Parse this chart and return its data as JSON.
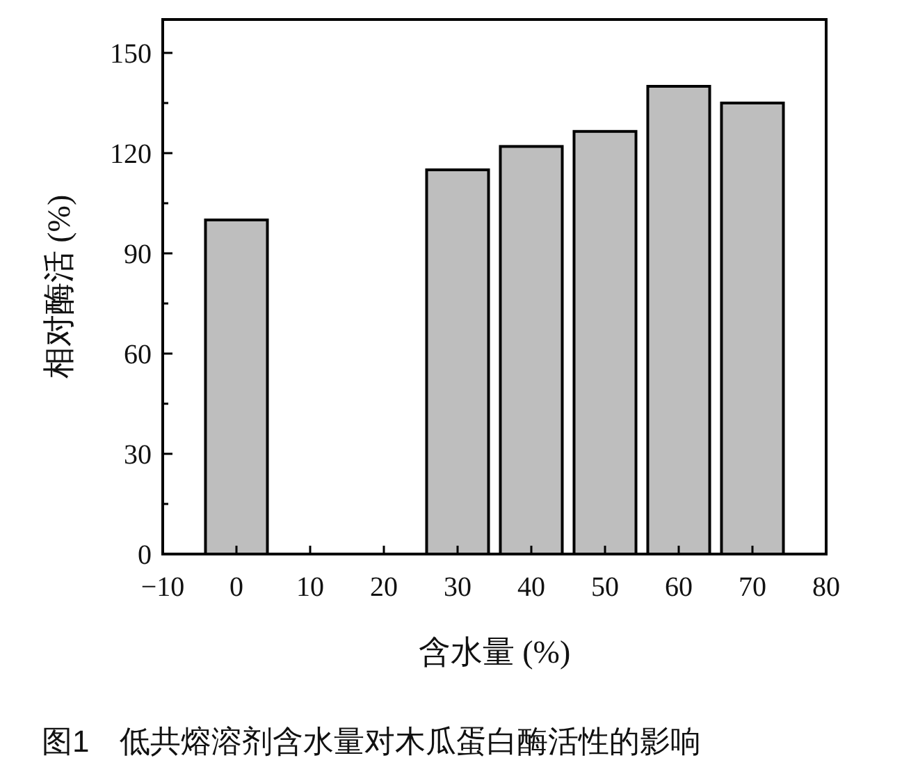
{
  "chart_data": {
    "type": "bar",
    "x": [
      0,
      30,
      40,
      50,
      60,
      70
    ],
    "values": [
      100,
      115,
      122,
      126.5,
      140,
      135
    ],
    "color": "#bebebe",
    "xlabel": "含水量 (%)",
    "ylabel": "相对酶活 (%)",
    "xlim": [
      -10,
      80
    ],
    "xticks": [
      -10,
      0,
      10,
      20,
      30,
      40,
      50,
      60,
      70,
      80
    ],
    "ylim": [
      0,
      160
    ],
    "yticks": [
      0,
      {
        "value": 15,
        "label": null
      },
      30,
      {
        "value": 45,
        "label": null
      },
      60,
      {
        "value": 75,
        "label": null
      },
      90,
      {
        "value": 105,
        "label": null
      },
      120,
      {
        "value": 135,
        "label": null
      },
      150
    ],
    "grid": false,
    "annotations": [
      "图1　低共熔溶剂含水量对木瓜蛋白酶活性的影响"
    ]
  }
}
